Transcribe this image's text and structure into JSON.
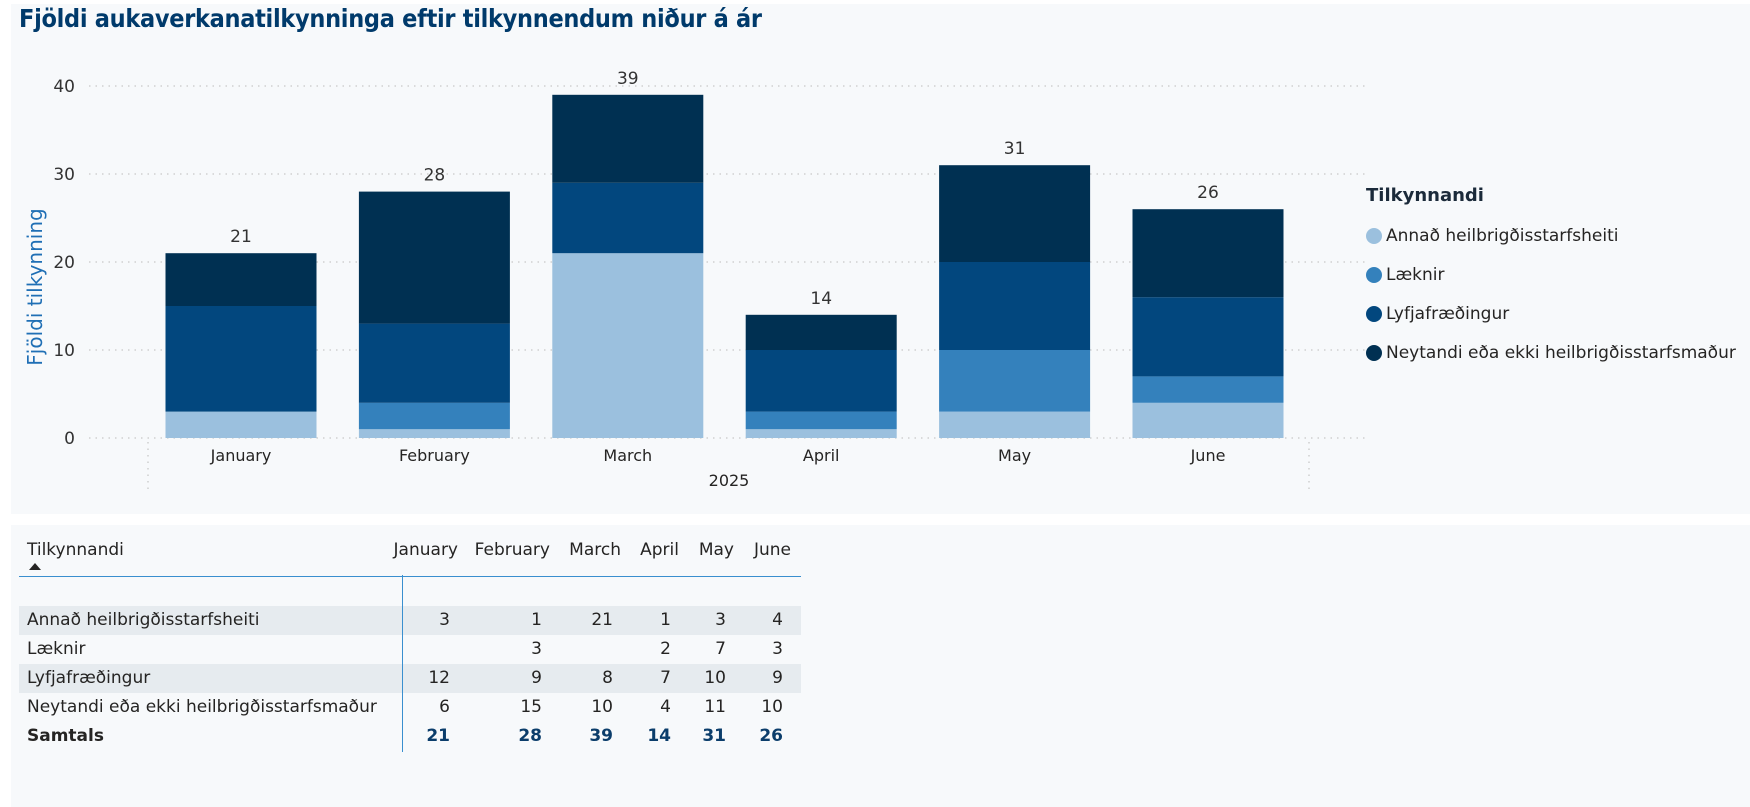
{
  "chart_data": {
    "type": "bar",
    "stacked": true,
    "title": "Fjöldi aukaverkanatilkynninga eftir tilkynnendum niður á ár",
    "ylabel": "Fjöldi tilkynning",
    "xgroup_label": "2025",
    "categories": [
      "January",
      "February",
      "March",
      "April",
      "May",
      "June"
    ],
    "ylim": [
      0,
      40
    ],
    "yticks": [
      0,
      10,
      20,
      30,
      40
    ],
    "grid": true,
    "legend_title": "Tilkynnandi",
    "legend_position": "right",
    "series": [
      {
        "name": "Annað heilbrigðisstarfsheiti",
        "color": "#9bc0de",
        "values": [
          3,
          1,
          21,
          1,
          3,
          4
        ]
      },
      {
        "name": "Læknir",
        "color": "#3481bc",
        "values": [
          0,
          3,
          0,
          2,
          7,
          3
        ]
      },
      {
        "name": "Lyfjafræðingur",
        "color": "#02477e",
        "values": [
          12,
          9,
          8,
          7,
          10,
          9
        ]
      },
      {
        "name": "Neytandi eða ekki heilbrigðisstarfsmaður",
        "color": "#003052",
        "values": [
          6,
          15,
          10,
          4,
          11,
          10
        ]
      }
    ],
    "totals": [
      21,
      28,
      39,
      14,
      31,
      26
    ]
  },
  "table": {
    "header_label": "Tilkynnandi",
    "columns": [
      "January",
      "February",
      "March",
      "April",
      "May",
      "June"
    ],
    "rows": [
      {
        "label": "Annað heilbrigðisstarfsheiti",
        "cells": [
          "3",
          "1",
          "21",
          "1",
          "3",
          "4"
        ]
      },
      {
        "label": "Læknir",
        "cells": [
          "",
          "3",
          "",
          "2",
          "7",
          "3"
        ]
      },
      {
        "label": "Lyfjafræðingur",
        "cells": [
          "12",
          "9",
          "8",
          "7",
          "10",
          "9"
        ]
      },
      {
        "label": "Neytandi eða ekki heilbrigðisstarfsmaður",
        "cells": [
          "6",
          "15",
          "10",
          "4",
          "11",
          "10"
        ]
      }
    ],
    "total": {
      "label": "Samtals",
      "cells": [
        "21",
        "28",
        "39",
        "14",
        "31",
        "26"
      ]
    }
  }
}
